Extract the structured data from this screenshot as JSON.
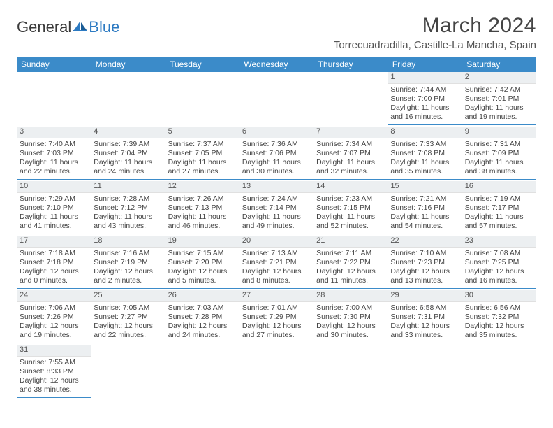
{
  "logo": {
    "text1": "General",
    "text2": "Blue"
  },
  "title": "March 2024",
  "location": "Torrecuadradilla, Castille-La Mancha, Spain",
  "colors": {
    "header_bg": "#3b8bc9",
    "header_text": "#ffffff",
    "daynum_bg": "#eceff1",
    "row_divider": "#3b8bc9",
    "body_text": "#444444"
  },
  "weekdays": [
    "Sunday",
    "Monday",
    "Tuesday",
    "Wednesday",
    "Thursday",
    "Friday",
    "Saturday"
  ],
  "weeks": [
    [
      null,
      null,
      null,
      null,
      null,
      {
        "n": "1",
        "sr": "Sunrise: 7:44 AM",
        "ss": "Sunset: 7:00 PM",
        "d1": "Daylight: 11 hours",
        "d2": "and 16 minutes."
      },
      {
        "n": "2",
        "sr": "Sunrise: 7:42 AM",
        "ss": "Sunset: 7:01 PM",
        "d1": "Daylight: 11 hours",
        "d2": "and 19 minutes."
      }
    ],
    [
      {
        "n": "3",
        "sr": "Sunrise: 7:40 AM",
        "ss": "Sunset: 7:03 PM",
        "d1": "Daylight: 11 hours",
        "d2": "and 22 minutes."
      },
      {
        "n": "4",
        "sr": "Sunrise: 7:39 AM",
        "ss": "Sunset: 7:04 PM",
        "d1": "Daylight: 11 hours",
        "d2": "and 24 minutes."
      },
      {
        "n": "5",
        "sr": "Sunrise: 7:37 AM",
        "ss": "Sunset: 7:05 PM",
        "d1": "Daylight: 11 hours",
        "d2": "and 27 minutes."
      },
      {
        "n": "6",
        "sr": "Sunrise: 7:36 AM",
        "ss": "Sunset: 7:06 PM",
        "d1": "Daylight: 11 hours",
        "d2": "and 30 minutes."
      },
      {
        "n": "7",
        "sr": "Sunrise: 7:34 AM",
        "ss": "Sunset: 7:07 PM",
        "d1": "Daylight: 11 hours",
        "d2": "and 32 minutes."
      },
      {
        "n": "8",
        "sr": "Sunrise: 7:33 AM",
        "ss": "Sunset: 7:08 PM",
        "d1": "Daylight: 11 hours",
        "d2": "and 35 minutes."
      },
      {
        "n": "9",
        "sr": "Sunrise: 7:31 AM",
        "ss": "Sunset: 7:09 PM",
        "d1": "Daylight: 11 hours",
        "d2": "and 38 minutes."
      }
    ],
    [
      {
        "n": "10",
        "sr": "Sunrise: 7:29 AM",
        "ss": "Sunset: 7:10 PM",
        "d1": "Daylight: 11 hours",
        "d2": "and 41 minutes."
      },
      {
        "n": "11",
        "sr": "Sunrise: 7:28 AM",
        "ss": "Sunset: 7:12 PM",
        "d1": "Daylight: 11 hours",
        "d2": "and 43 minutes."
      },
      {
        "n": "12",
        "sr": "Sunrise: 7:26 AM",
        "ss": "Sunset: 7:13 PM",
        "d1": "Daylight: 11 hours",
        "d2": "and 46 minutes."
      },
      {
        "n": "13",
        "sr": "Sunrise: 7:24 AM",
        "ss": "Sunset: 7:14 PM",
        "d1": "Daylight: 11 hours",
        "d2": "and 49 minutes."
      },
      {
        "n": "14",
        "sr": "Sunrise: 7:23 AM",
        "ss": "Sunset: 7:15 PM",
        "d1": "Daylight: 11 hours",
        "d2": "and 52 minutes."
      },
      {
        "n": "15",
        "sr": "Sunrise: 7:21 AM",
        "ss": "Sunset: 7:16 PM",
        "d1": "Daylight: 11 hours",
        "d2": "and 54 minutes."
      },
      {
        "n": "16",
        "sr": "Sunrise: 7:19 AM",
        "ss": "Sunset: 7:17 PM",
        "d1": "Daylight: 11 hours",
        "d2": "and 57 minutes."
      }
    ],
    [
      {
        "n": "17",
        "sr": "Sunrise: 7:18 AM",
        "ss": "Sunset: 7:18 PM",
        "d1": "Daylight: 12 hours",
        "d2": "and 0 minutes."
      },
      {
        "n": "18",
        "sr": "Sunrise: 7:16 AM",
        "ss": "Sunset: 7:19 PM",
        "d1": "Daylight: 12 hours",
        "d2": "and 2 minutes."
      },
      {
        "n": "19",
        "sr": "Sunrise: 7:15 AM",
        "ss": "Sunset: 7:20 PM",
        "d1": "Daylight: 12 hours",
        "d2": "and 5 minutes."
      },
      {
        "n": "20",
        "sr": "Sunrise: 7:13 AM",
        "ss": "Sunset: 7:21 PM",
        "d1": "Daylight: 12 hours",
        "d2": "and 8 minutes."
      },
      {
        "n": "21",
        "sr": "Sunrise: 7:11 AM",
        "ss": "Sunset: 7:22 PM",
        "d1": "Daylight: 12 hours",
        "d2": "and 11 minutes."
      },
      {
        "n": "22",
        "sr": "Sunrise: 7:10 AM",
        "ss": "Sunset: 7:23 PM",
        "d1": "Daylight: 12 hours",
        "d2": "and 13 minutes."
      },
      {
        "n": "23",
        "sr": "Sunrise: 7:08 AM",
        "ss": "Sunset: 7:25 PM",
        "d1": "Daylight: 12 hours",
        "d2": "and 16 minutes."
      }
    ],
    [
      {
        "n": "24",
        "sr": "Sunrise: 7:06 AM",
        "ss": "Sunset: 7:26 PM",
        "d1": "Daylight: 12 hours",
        "d2": "and 19 minutes."
      },
      {
        "n": "25",
        "sr": "Sunrise: 7:05 AM",
        "ss": "Sunset: 7:27 PM",
        "d1": "Daylight: 12 hours",
        "d2": "and 22 minutes."
      },
      {
        "n": "26",
        "sr": "Sunrise: 7:03 AM",
        "ss": "Sunset: 7:28 PM",
        "d1": "Daylight: 12 hours",
        "d2": "and 24 minutes."
      },
      {
        "n": "27",
        "sr": "Sunrise: 7:01 AM",
        "ss": "Sunset: 7:29 PM",
        "d1": "Daylight: 12 hours",
        "d2": "and 27 minutes."
      },
      {
        "n": "28",
        "sr": "Sunrise: 7:00 AM",
        "ss": "Sunset: 7:30 PM",
        "d1": "Daylight: 12 hours",
        "d2": "and 30 minutes."
      },
      {
        "n": "29",
        "sr": "Sunrise: 6:58 AM",
        "ss": "Sunset: 7:31 PM",
        "d1": "Daylight: 12 hours",
        "d2": "and 33 minutes."
      },
      {
        "n": "30",
        "sr": "Sunrise: 6:56 AM",
        "ss": "Sunset: 7:32 PM",
        "d1": "Daylight: 12 hours",
        "d2": "and 35 minutes."
      }
    ],
    [
      {
        "n": "31",
        "sr": "Sunrise: 7:55 AM",
        "ss": "Sunset: 8:33 PM",
        "d1": "Daylight: 12 hours",
        "d2": "and 38 minutes."
      },
      null,
      null,
      null,
      null,
      null,
      null
    ]
  ]
}
